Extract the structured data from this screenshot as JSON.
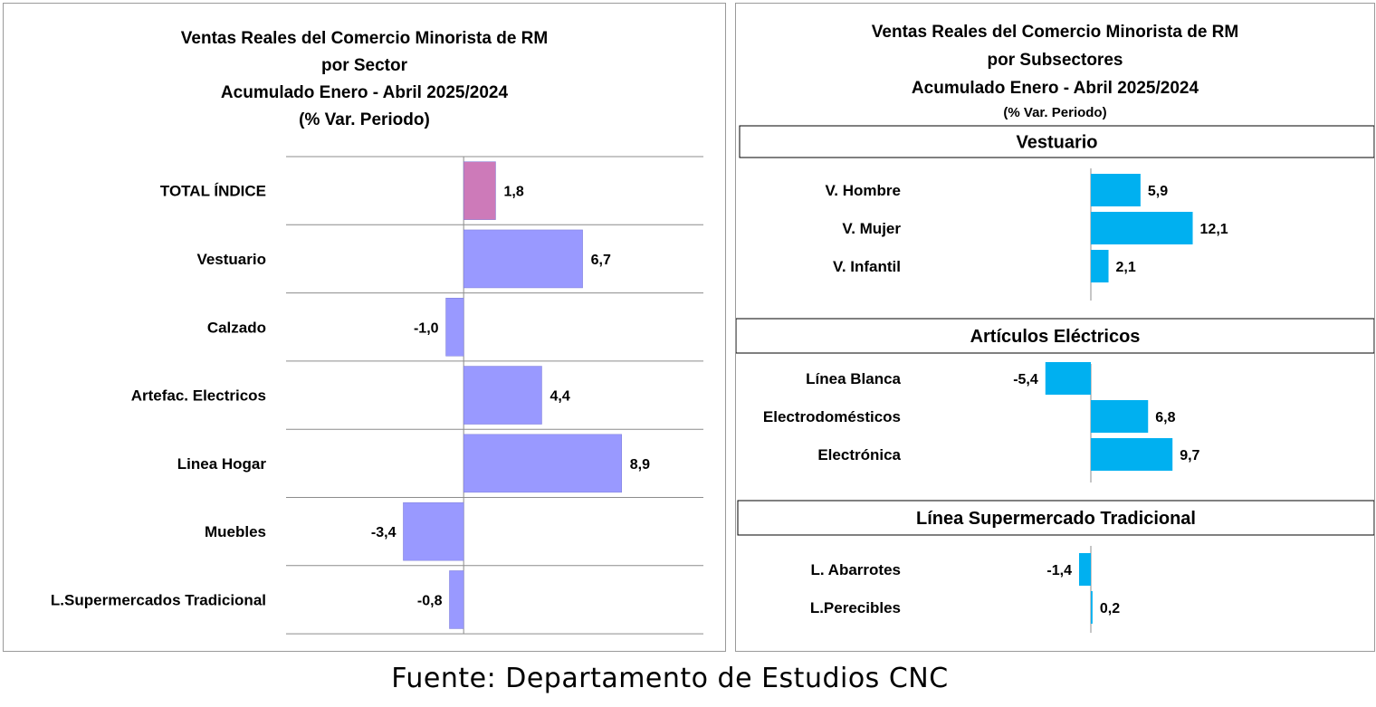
{
  "left_chart": {
    "title_lines": [
      "Ventas Reales del Comercio Minorista de RM",
      "por Sector",
      "Acumulado Enero - Abril 2025/2024",
      "(% Var. Periodo)"
    ]
  },
  "right_chart": {
    "title_lines": [
      "Ventas Reales del Comercio Minorista de RM",
      "por Subsectores",
      "Acumulado Enero - Abril  2025/2024"
    ],
    "subtitle": "(% Var. Periodo)"
  },
  "source": "Fuente: Departamento de Estudios CNC",
  "colors": {
    "total": "#cd7ab9",
    "sector": "#9999ff",
    "subsector": "#00b0f0"
  },
  "chart_data": [
    {
      "type": "bar",
      "orientation": "horizontal",
      "title": "Ventas Reales del Comercio Minorista de RM por Sector Acumulado Enero - Abril 2025/2024 (% Var. Periodo)",
      "categories": [
        "TOTAL ÍNDICE",
        "Vestuario",
        "Calzado",
        "Artefac. Electricos",
        "Linea Hogar",
        "Muebles",
        "L.Supermercados Tradicional"
      ],
      "values": [
        1.8,
        6.7,
        -1.0,
        4.4,
        8.9,
        -3.4,
        -0.8
      ],
      "value_labels": [
        "1,8",
        "6,7",
        "-1,0",
        "4,4",
        "8,9",
        "-3,4",
        "-0,8"
      ],
      "xlim": [
        -10,
        13.5
      ],
      "grid": true
    },
    {
      "type": "bar",
      "orientation": "horizontal",
      "title": "Ventas Reales del Comercio Minorista de RM por Subsectores Acumulado Enero - Abril 2025/2024 (% Var. Periodo)",
      "groups": [
        {
          "name": "Vestuario",
          "categories": [
            "V. Hombre",
            "V. Mujer",
            "V. Infantil"
          ],
          "values": [
            5.9,
            12.1,
            2.1
          ],
          "value_labels": [
            "5,9",
            "12,1",
            "2,1"
          ]
        },
        {
          "name": "Artículos Eléctricos",
          "categories": [
            "Línea Blanca",
            "Electrodomésticos",
            "Electrónica"
          ],
          "values": [
            -5.4,
            6.8,
            9.7
          ],
          "value_labels": [
            "-5,4",
            "6,8",
            "9,7"
          ]
        },
        {
          "name": "Línea  Supermercado Tradicional",
          "categories": [
            "L. Abarrotes",
            "L.Perecibles"
          ],
          "values": [
            -1.4,
            0.2
          ],
          "value_labels": [
            "-1,4",
            "0,2"
          ]
        }
      ],
      "grid": false
    }
  ]
}
